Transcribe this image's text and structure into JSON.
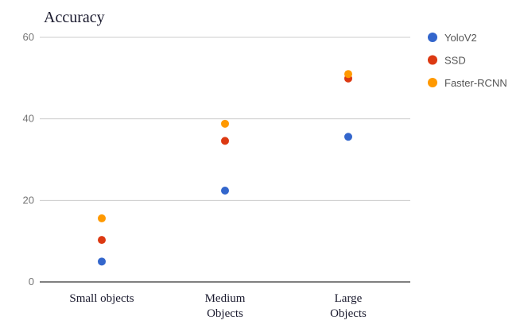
{
  "chart_data": {
    "type": "scatter",
    "title": "Accuracy",
    "xlabel": "",
    "ylabel": "",
    "categories": [
      [
        "Small objects"
      ],
      [
        "Medium",
        "Objects"
      ],
      [
        "Large",
        "Objects"
      ]
    ],
    "ylim": [
      0,
      60
    ],
    "yticks": [
      0,
      20,
      40,
      60
    ],
    "grid": true,
    "legend_position": "right",
    "series": [
      {
        "name": "YoloV2",
        "color": "#3366cc",
        "values": [
          5,
          22.4,
          35.6
        ]
      },
      {
        "name": "SSD",
        "color": "#dc3912",
        "values": [
          10.3,
          34.6,
          49.9
        ]
      },
      {
        "name": "Faster-RCNN",
        "color": "#ff9900",
        "values": [
          15.6,
          38.8,
          51
        ]
      }
    ]
  }
}
